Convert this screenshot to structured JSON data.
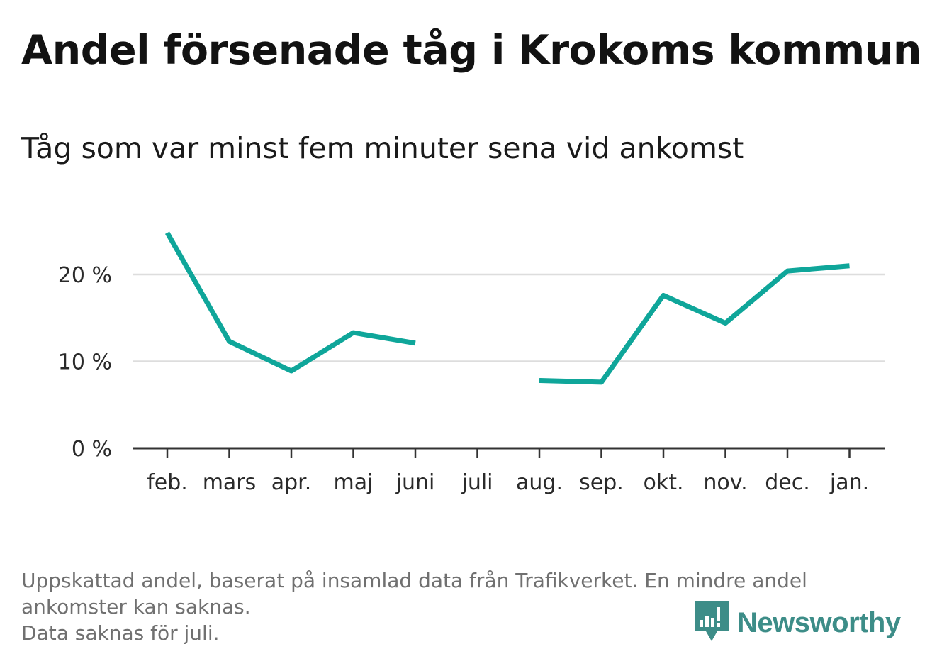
{
  "title": "Andel försenade tåg i Krokoms kommun",
  "subtitle": "Tåg som var minst fem minuter sena vid ankomst",
  "footnote": {
    "line1": "Uppskattad andel, baserat på insamlad data från Trafikverket. En mindre andel",
    "line2": "ankomster kan saknas.",
    "line3": "Data saknas för juli."
  },
  "brand": {
    "name": "Newsworthy",
    "icon": "newsworthy-logo-icon",
    "color": "#3d8d88"
  },
  "colors": {
    "line": "#0fa69a",
    "grid": "#dddddd",
    "axis": "#333333"
  },
  "chart_data": {
    "type": "line",
    "categories": [
      "feb.",
      "mars",
      "apr.",
      "maj",
      "juni",
      "juli",
      "aug.",
      "sep.",
      "okt.",
      "nov.",
      "dec.",
      "jan."
    ],
    "series": [
      {
        "values": [
          24.8,
          12.3,
          8.9,
          13.3,
          12.1,
          null,
          7.8,
          7.6,
          17.6,
          14.4,
          20.4,
          21.0
        ]
      }
    ],
    "yticks": [
      0,
      10,
      20
    ],
    "ytick_labels": [
      "0 %",
      "10 %",
      "20 %"
    ],
    "ylim": [
      0,
      25
    ],
    "grid": true,
    "xlabel": "",
    "ylabel": ""
  }
}
